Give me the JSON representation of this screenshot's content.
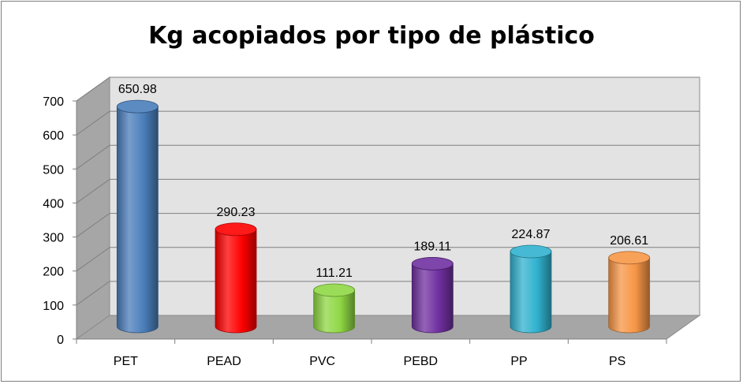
{
  "chart_data": {
    "type": "bar",
    "title": "Kg acopiados por tipo de plástico",
    "xlabel": "",
    "ylabel": "",
    "categories": [
      "PET",
      "PEAD",
      "PVC",
      "PEBD",
      "PP",
      "PS"
    ],
    "values": [
      650.98,
      290.23,
      111.21,
      189.11,
      224.87,
      206.61
    ],
    "value_labels": [
      "650.98",
      "290.23",
      "111.21",
      "189.11",
      "224.87",
      "206.61"
    ],
    "ylim": [
      0,
      700
    ],
    "yticks": [
      "0",
      "100",
      "200",
      "300",
      "400",
      "500",
      "600",
      "700"
    ],
    "grid": true,
    "legend": "none",
    "style": "3d-cylinder",
    "colors": [
      "#4a7ebb",
      "#ff0000",
      "#8fd744",
      "#7030a0",
      "#31b2cf",
      "#f79646"
    ]
  }
}
